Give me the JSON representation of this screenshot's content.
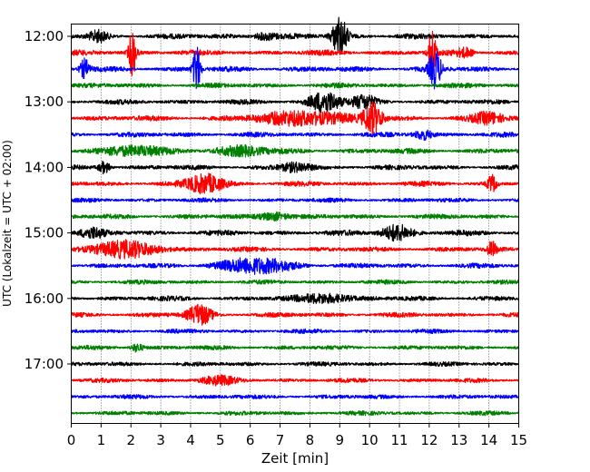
{
  "chart_data": {
    "type": "line",
    "title": "",
    "xlabel": "Zeit  [min]",
    "ylabel": "UTC (Lokalzeit = UTC + 02:00)",
    "xlim": [
      0,
      15
    ],
    "x_ticks": [
      0,
      1,
      2,
      3,
      4,
      5,
      6,
      7,
      8,
      9,
      10,
      11,
      12,
      13,
      14,
      15
    ],
    "x_tick_labels": [
      "0",
      "1",
      "2",
      "3",
      "4",
      "5",
      "6",
      "7",
      "8",
      "9",
      "10",
      "11",
      "12",
      "13",
      "14",
      "15"
    ],
    "y_tick_labels": [
      "12:00",
      "13:00",
      "14:00",
      "15:00",
      "16:00",
      "17:00"
    ],
    "trace_interval_minutes": 15,
    "color_cycle": [
      "#000000",
      "#ff0000",
      "#0000ff",
      "#008000"
    ],
    "grid": {
      "x": true,
      "style": "dotted"
    },
    "traces": [
      {
        "start": "12:00",
        "color": "#000000",
        "noise": 1.0,
        "events": [
          {
            "t": 9.0,
            "amp": 3.2,
            "dur": 0.25
          },
          {
            "t": 0.9,
            "amp": 0.8,
            "dur": 0.3
          },
          {
            "t": 6.5,
            "amp": 0.6,
            "dur": 0.4
          }
        ]
      },
      {
        "start": "12:15",
        "color": "#ff0000",
        "noise": 1.0,
        "events": [
          {
            "t": 2.05,
            "amp": 4.0,
            "dur": 0.12
          },
          {
            "t": 12.1,
            "amp": 4.0,
            "dur": 0.12
          },
          {
            "t": 13.2,
            "amp": 0.7,
            "dur": 0.3
          }
        ]
      },
      {
        "start": "12:30",
        "color": "#0000ff",
        "noise": 1.0,
        "events": [
          {
            "t": 0.45,
            "amp": 1.6,
            "dur": 0.15
          },
          {
            "t": 4.2,
            "amp": 4.0,
            "dur": 0.12
          },
          {
            "t": 12.2,
            "amp": 3.0,
            "dur": 0.2
          }
        ]
      },
      {
        "start": "12:45",
        "color": "#008000",
        "noise": 0.9,
        "events": []
      },
      {
        "start": "13:00",
        "color": "#000000",
        "noise": 0.9,
        "events": [
          {
            "t": 8.5,
            "amp": 1.8,
            "dur": 0.5
          },
          {
            "t": 9.8,
            "amp": 1.0,
            "dur": 0.4
          }
        ]
      },
      {
        "start": "13:15",
        "color": "#ff0000",
        "noise": 1.0,
        "events": [
          {
            "t": 7.8,
            "amp": 1.2,
            "dur": 1.4
          },
          {
            "t": 10.1,
            "amp": 2.6,
            "dur": 0.3
          },
          {
            "t": 14.0,
            "amp": 0.9,
            "dur": 0.5
          }
        ]
      },
      {
        "start": "13:30",
        "color": "#0000ff",
        "noise": 0.9,
        "events": [
          {
            "t": 11.8,
            "amp": 0.8,
            "dur": 0.3
          }
        ]
      },
      {
        "start": "13:45",
        "color": "#008000",
        "noise": 1.0,
        "events": [
          {
            "t": 2.0,
            "amp": 0.8,
            "dur": 1.0
          },
          {
            "t": 5.7,
            "amp": 0.8,
            "dur": 0.8
          }
        ]
      },
      {
        "start": "14:00",
        "color": "#000000",
        "noise": 0.9,
        "events": [
          {
            "t": 1.1,
            "amp": 1.0,
            "dur": 0.2
          },
          {
            "t": 7.5,
            "amp": 0.7,
            "dur": 0.5
          }
        ]
      },
      {
        "start": "14:15",
        "color": "#ff0000",
        "noise": 0.9,
        "events": [
          {
            "t": 4.5,
            "amp": 1.6,
            "dur": 0.6
          },
          {
            "t": 14.1,
            "amp": 1.4,
            "dur": 0.15
          }
        ]
      },
      {
        "start": "14:30",
        "color": "#0000ff",
        "noise": 0.8,
        "events": []
      },
      {
        "start": "14:45",
        "color": "#008000",
        "noise": 0.9,
        "events": [
          {
            "t": 6.8,
            "amp": 0.7,
            "dur": 0.5
          }
        ]
      },
      {
        "start": "15:00",
        "color": "#000000",
        "noise": 1.0,
        "events": [
          {
            "t": 10.9,
            "amp": 1.3,
            "dur": 0.5
          },
          {
            "t": 0.7,
            "amp": 0.7,
            "dur": 0.4
          }
        ]
      },
      {
        "start": "15:15",
        "color": "#ff0000",
        "noise": 0.9,
        "events": [
          {
            "t": 1.8,
            "amp": 1.2,
            "dur": 1.2
          },
          {
            "t": 14.1,
            "amp": 1.2,
            "dur": 0.15
          }
        ]
      },
      {
        "start": "15:30",
        "color": "#0000ff",
        "noise": 0.9,
        "events": [
          {
            "t": 6.2,
            "amp": 1.2,
            "dur": 1.2
          }
        ]
      },
      {
        "start": "15:45",
        "color": "#008000",
        "noise": 0.8,
        "events": []
      },
      {
        "start": "16:00",
        "color": "#000000",
        "noise": 0.9,
        "events": [
          {
            "t": 8.5,
            "amp": 0.8,
            "dur": 0.8
          }
        ]
      },
      {
        "start": "16:15",
        "color": "#ff0000",
        "noise": 0.9,
        "events": [
          {
            "t": 4.3,
            "amp": 1.6,
            "dur": 0.4
          }
        ]
      },
      {
        "start": "16:30",
        "color": "#0000ff",
        "noise": 0.8,
        "events": []
      },
      {
        "start": "16:45",
        "color": "#008000",
        "noise": 0.8,
        "events": [
          {
            "t": 2.2,
            "amp": 0.7,
            "dur": 0.2
          }
        ]
      },
      {
        "start": "17:00",
        "color": "#000000",
        "noise": 0.8,
        "events": []
      },
      {
        "start": "17:15",
        "color": "#ff0000",
        "noise": 0.8,
        "events": [
          {
            "t": 4.9,
            "amp": 0.6,
            "dur": 0.6
          }
        ]
      },
      {
        "start": "17:30",
        "color": "#0000ff",
        "noise": 0.8,
        "events": []
      },
      {
        "start": "17:45",
        "color": "#008000",
        "noise": 0.8,
        "events": []
      }
    ]
  }
}
